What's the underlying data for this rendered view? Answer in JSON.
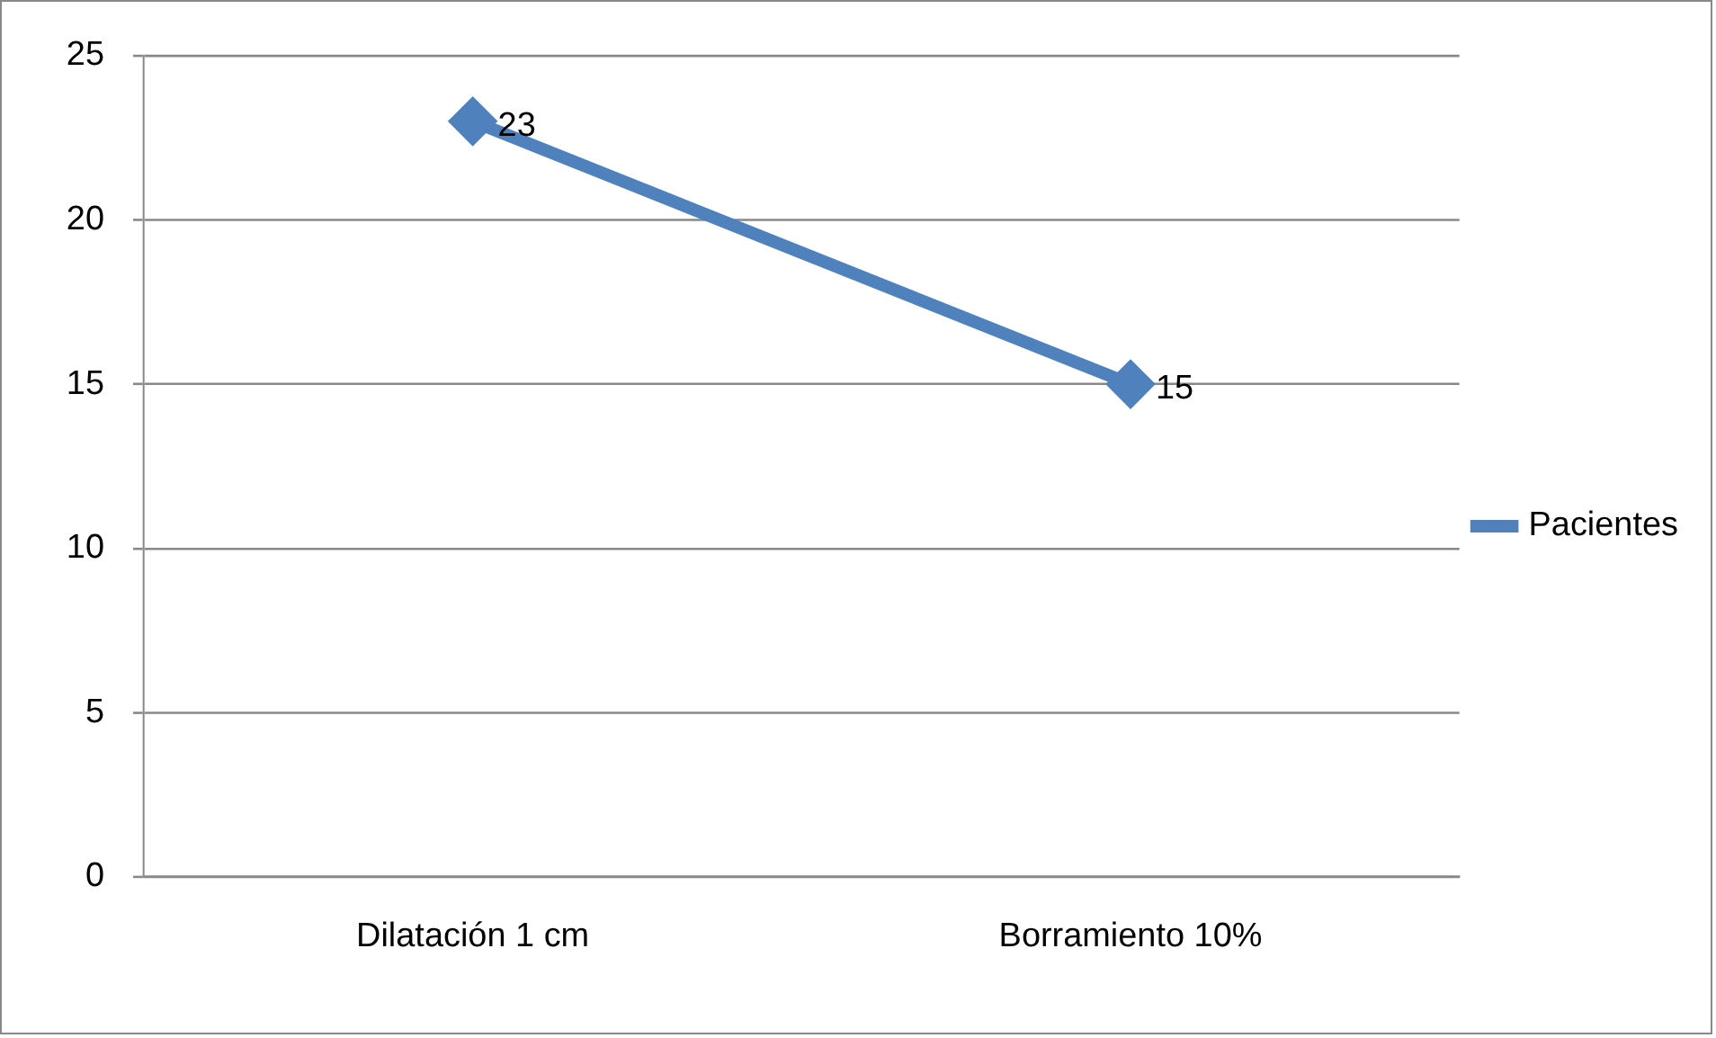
{
  "chart_data": {
    "type": "line",
    "categories": [
      "Dilatación 1 cm",
      "Borramiento 10%"
    ],
    "series": [
      {
        "name": "Pacientes",
        "color": "#4f81bd",
        "values": [
          23,
          15
        ]
      }
    ],
    "ylim": [
      0,
      25
    ],
    "yticks": [
      0,
      5,
      10,
      15,
      20,
      25
    ],
    "grid": "y",
    "legend": "right",
    "marker": "diamond",
    "line_style": "solid",
    "data_labels": true
  }
}
